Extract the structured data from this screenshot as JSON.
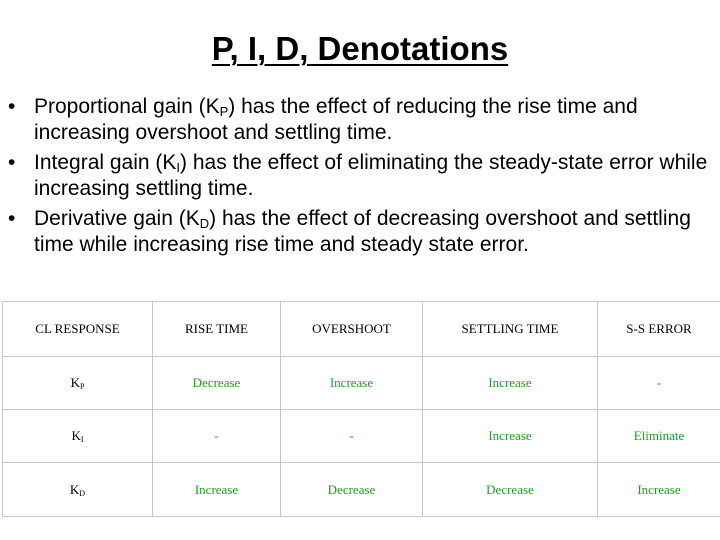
{
  "slide": {
    "title": "P, I, D, Denotations",
    "bullets": [
      {
        "before": "Proportional gain (K",
        "sub": "P",
        "after": ") has the effect of reducing the rise time and increasing overshoot and settling time."
      },
      {
        "before": "Integral gain (K",
        "sub": "I",
        "after": ") has the effect of eliminating the steady-state error while increasing settling time."
      },
      {
        "before": "Derivative gain (K",
        "sub": "D",
        "after": ") has the effect of decreasing overshoot and settling time while increasing rise time and steady state error."
      }
    ],
    "bullet_symbol": "•"
  },
  "table": {
    "headers": [
      "CL RESPONSE",
      "RISE TIME",
      "OVERSHOOT",
      "SETTLING TIME",
      "S-S ERROR"
    ],
    "rows": [
      {
        "label": "K",
        "sub": "P",
        "cells": [
          "Decrease",
          "Increase",
          "Increase",
          "-"
        ]
      },
      {
        "label": "K",
        "sub": "I",
        "cells": [
          "-",
          "-",
          "Increase",
          "Eliminate"
        ]
      },
      {
        "label": "K",
        "sub": "D",
        "cells": [
          "Increase",
          "Decrease",
          "Decrease",
          "Increase"
        ]
      }
    ],
    "value_color": "#1e9e1e"
  }
}
